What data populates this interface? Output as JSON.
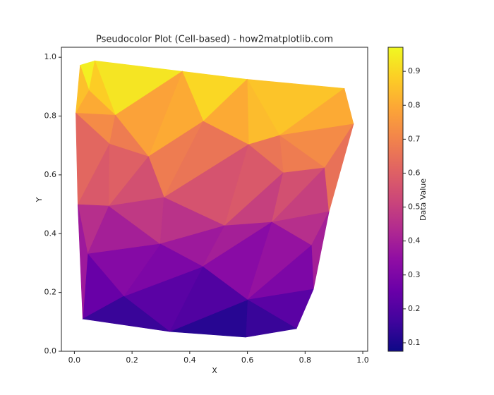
{
  "chart_data": {
    "type": "tripcolor",
    "title": "Pseudocolor Plot (Cell-based) - how2matplotlib.com",
    "xlabel": "X",
    "ylabel": "Y",
    "colorbar_label": "Data Value",
    "colormap": "plasma",
    "points": [
      [
        0.02,
        0.973
      ],
      [
        0.071,
        0.988
      ],
      [
        0.374,
        0.952
      ],
      [
        0.599,
        0.925
      ],
      [
        0.936,
        0.894
      ],
      [
        0.968,
        0.773
      ],
      [
        0.883,
        0.475
      ],
      [
        0.829,
        0.211
      ],
      [
        0.77,
        0.077
      ],
      [
        0.594,
        0.048
      ],
      [
        0.33,
        0.067
      ],
      [
        0.029,
        0.11
      ],
      [
        0.012,
        0.499
      ],
      [
        0.005,
        0.81
      ],
      [
        0.051,
        0.887
      ],
      [
        0.142,
        0.803
      ],
      [
        0.257,
        0.662
      ],
      [
        0.122,
        0.705
      ],
      [
        0.447,
        0.782
      ],
      [
        0.604,
        0.703
      ],
      [
        0.711,
        0.734
      ],
      [
        0.868,
        0.624
      ],
      [
        0.724,
        0.607
      ],
      [
        0.12,
        0.494
      ],
      [
        0.311,
        0.523
      ],
      [
        0.521,
        0.427
      ],
      [
        0.685,
        0.439
      ],
      [
        0.822,
        0.36
      ],
      [
        0.046,
        0.331
      ],
      [
        0.298,
        0.365
      ],
      [
        0.171,
        0.187
      ],
      [
        0.445,
        0.288
      ],
      [
        0.6,
        0.175
      ]
    ],
    "triangles": [
      [
        0,
        1,
        14
      ],
      [
        1,
        2,
        15
      ],
      [
        1,
        15,
        14
      ],
      [
        0,
        14,
        13
      ],
      [
        13,
        14,
        15
      ],
      [
        2,
        3,
        18
      ],
      [
        2,
        18,
        16
      ],
      [
        2,
        16,
        15
      ],
      [
        3,
        4,
        20
      ],
      [
        3,
        20,
        19
      ],
      [
        3,
        19,
        18
      ],
      [
        4,
        5,
        20
      ],
      [
        5,
        21,
        20
      ],
      [
        20,
        21,
        22
      ],
      [
        19,
        20,
        22
      ],
      [
        16,
        18,
        24
      ],
      [
        18,
        19,
        24
      ],
      [
        19,
        25,
        24
      ],
      [
        19,
        22,
        25
      ],
      [
        22,
        26,
        25
      ],
      [
        22,
        21,
        26
      ],
      [
        21,
        6,
        26
      ],
      [
        5,
        6,
        21
      ],
      [
        26,
        6,
        27
      ],
      [
        6,
        7,
        27
      ],
      [
        13,
        15,
        17
      ],
      [
        15,
        16,
        17
      ],
      [
        13,
        17,
        12
      ],
      [
        17,
        23,
        12
      ],
      [
        17,
        16,
        23
      ],
      [
        16,
        24,
        23
      ],
      [
        12,
        23,
        28
      ],
      [
        23,
        29,
        28
      ],
      [
        23,
        24,
        29
      ],
      [
        24,
        25,
        29
      ],
      [
        25,
        31,
        29
      ],
      [
        25,
        26,
        31
      ],
      [
        26,
        32,
        31
      ],
      [
        26,
        27,
        32
      ],
      [
        27,
        7,
        32
      ],
      [
        7,
        8,
        32
      ],
      [
        8,
        9,
        32
      ],
      [
        9,
        32,
        10
      ],
      [
        10,
        32,
        31
      ],
      [
        10,
        31,
        30
      ],
      [
        30,
        31,
        29
      ],
      [
        28,
        29,
        30
      ],
      [
        28,
        30,
        11
      ],
      [
        30,
        10,
        11
      ],
      [
        12,
        28,
        11
      ]
    ],
    "values": [
      0.95,
      0.93,
      0.88,
      0.85,
      0.8,
      0.9,
      0.8,
      0.78,
      0.86,
      0.84,
      0.8,
      0.8,
      0.72,
      0.68,
      0.66,
      0.68,
      0.66,
      0.56,
      0.58,
      0.5,
      0.55,
      0.5,
      0.65,
      0.45,
      0.4,
      0.72,
      0.68,
      0.62,
      0.58,
      0.6,
      0.55,
      0.45,
      0.4,
      0.48,
      0.46,
      0.38,
      0.4,
      0.33,
      0.36,
      0.3,
      0.22,
      0.15,
      0.12,
      0.2,
      0.22,
      0.3,
      0.32,
      0.25,
      0.15,
      0.38
    ],
    "xlim": [
      -0.045,
      1.017
    ],
    "ylim": [
      0,
      1.034
    ],
    "clim": [
      0.075,
      0.971
    ],
    "xticks": [
      {
        "value": 0,
        "label": "0.0"
      },
      {
        "value": 0.2,
        "label": "0.2"
      },
      {
        "value": 0.4,
        "label": "0.4"
      },
      {
        "value": 0.6,
        "label": "0.6"
      },
      {
        "value": 0.8,
        "label": "0.8"
      },
      {
        "value": 1,
        "label": "1.0"
      }
    ],
    "yticks": [
      {
        "value": 0,
        "label": "0.0"
      },
      {
        "value": 0.2,
        "label": "0.2"
      },
      {
        "value": 0.4,
        "label": "0.4"
      },
      {
        "value": 0.6,
        "label": "0.6"
      },
      {
        "value": 0.8,
        "label": "0.8"
      },
      {
        "value": 1,
        "label": "1.0"
      }
    ],
    "cticks": [
      0.1,
      0.2,
      0.3,
      0.4,
      0.5,
      0.6,
      0.7,
      0.8,
      0.9
    ]
  }
}
